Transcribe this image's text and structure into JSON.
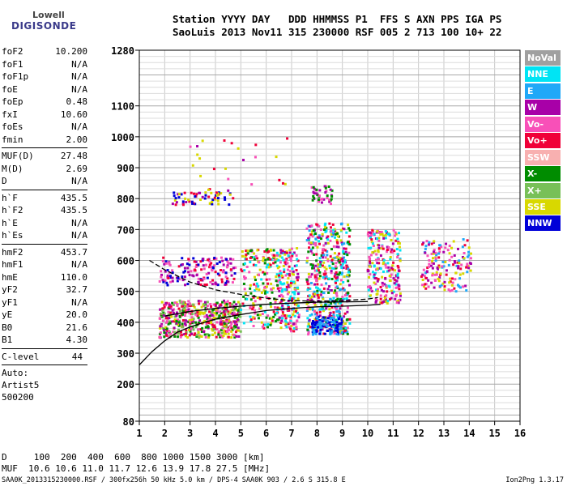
{
  "logo": {
    "line1": "Lowell",
    "line2": "DIGISONDE"
  },
  "header": {
    "labels": "Station YYYY DAY   DDD HHMMSS P1  FFS S AXN PPS IGA PS",
    "values": "SaoLuis 2013 Nov11 315 230000 RSF 005 2 713 100 10+ 22"
  },
  "params": {
    "group1": [
      {
        "name": "foF2",
        "value": "10.200"
      },
      {
        "name": "foF1",
        "value": "N/A"
      },
      {
        "name": "foF1p",
        "value": "N/A"
      },
      {
        "name": "foE",
        "value": "N/A"
      },
      {
        "name": "foEp",
        "value": "0.48"
      },
      {
        "name": "fxI",
        "value": "10.60"
      },
      {
        "name": "foEs",
        "value": "N/A"
      },
      {
        "name": "fmin",
        "value": "2.00"
      }
    ],
    "group2": [
      {
        "name": "MUF(D)",
        "value": "27.48"
      },
      {
        "name": "M(D)",
        "value": "2.69"
      },
      {
        "name": "D",
        "value": "N/A"
      }
    ],
    "group3": [
      {
        "name": "h`F",
        "value": "435.5"
      },
      {
        "name": "h`F2",
        "value": "435.5"
      },
      {
        "name": "h`E",
        "value": "N/A"
      },
      {
        "name": "h`Es",
        "value": "N/A"
      }
    ],
    "group4": [
      {
        "name": "hmF2",
        "value": "453.7"
      },
      {
        "name": "hmF1",
        "value": "N/A"
      },
      {
        "name": "hmE",
        "value": "110.0"
      },
      {
        "name": "yF2",
        "value": "32.7"
      },
      {
        "name": "yF1",
        "value": "N/A"
      },
      {
        "name": "yE",
        "value": "20.0"
      },
      {
        "name": "B0",
        "value": "21.6"
      },
      {
        "name": "B1",
        "value": "4.30"
      }
    ],
    "clevel": {
      "name": "C-level",
      "value": "44"
    },
    "auto": [
      "Auto:",
      "Artist5",
      "500200"
    ]
  },
  "legend": [
    {
      "label": "NoVal",
      "color": "#a0a0a0"
    },
    {
      "label": "NNE",
      "color": "#00e4f4"
    },
    {
      "label": "E",
      "color": "#20a8f8"
    },
    {
      "label": "W",
      "color": "#a800a8"
    },
    {
      "label": "Vo-",
      "color": "#f850b8"
    },
    {
      "label": "Vo+",
      "color": "#f00038"
    },
    {
      "label": "SSW",
      "color": "#f8b0b0"
    },
    {
      "label": "X-",
      "color": "#008c00"
    },
    {
      "label": "X+",
      "color": "#78c058"
    },
    {
      "label": "SSE",
      "color": "#d8d800"
    },
    {
      "label": "NNW",
      "color": "#0000d8"
    }
  ],
  "chart_data": {
    "type": "scatter",
    "xlabel": "",
    "ylabel": "",
    "xlim": [
      1,
      16
    ],
    "ylim": [
      80,
      1280
    ],
    "x_ticks": [
      "1",
      "2",
      "3",
      "4",
      "5",
      "6",
      "7",
      "8",
      "9",
      "10",
      "11",
      "12",
      "13",
      "14",
      "15",
      "16"
    ],
    "y_ticks": [
      {
        "value": 80,
        "label": "80"
      },
      {
        "value": 200,
        "label": "200"
      },
      {
        "value": 300,
        "label": "300"
      },
      {
        "value": 400,
        "label": "400"
      },
      {
        "value": 500,
        "label": "500"
      },
      {
        "value": 600,
        "label": "600"
      },
      {
        "value": 700,
        "label": "700"
      },
      {
        "value": 800,
        "label": "800"
      },
      {
        "value": 900,
        "label": "900"
      },
      {
        "value": 1000,
        "label": "1000"
      },
      {
        "value": 1100,
        "label": "1100"
      },
      {
        "value": 1280,
        "label": "1280"
      }
    ],
    "grid": true,
    "clusters": [
      {
        "x": [
          1.8,
          5.0
        ],
        "y": [
          350,
          470
        ],
        "density": 520,
        "colors": [
          "#f00038",
          "#f850b8",
          "#a800a8",
          "#d8d800",
          "#78c058",
          "#008c00"
        ]
      },
      {
        "x": [
          1.8,
          4.8
        ],
        "y": [
          520,
          610
        ],
        "density": 160,
        "colors": [
          "#a800a8",
          "#f850b8",
          "#f00038",
          "#0000d8"
        ]
      },
      {
        "x": [
          2.3,
          4.7
        ],
        "y": [
          780,
          820
        ],
        "density": 60,
        "colors": [
          "#f00038",
          "#a800a8",
          "#d8d800",
          "#0000d8"
        ]
      },
      {
        "x": [
          5.0,
          6.5
        ],
        "y": [
          380,
          640
        ],
        "density": 200,
        "colors": [
          "#d8d800",
          "#f850b8",
          "#008c00",
          "#00e4f4",
          "#f00038"
        ]
      },
      {
        "x": [
          6.5,
          7.3
        ],
        "y": [
          370,
          640
        ],
        "density": 200,
        "colors": [
          "#d8d800",
          "#f850b8",
          "#a800a8",
          "#f00038",
          "#00e4f4"
        ]
      },
      {
        "x": [
          7.6,
          9.3
        ],
        "y": [
          360,
          720
        ],
        "density": 520,
        "colors": [
          "#00e4f4",
          "#20a8f8",
          "#d8d800",
          "#f850b8",
          "#a800a8",
          "#008c00",
          "#f00038"
        ]
      },
      {
        "x": [
          7.8,
          9.0
        ],
        "y": [
          360,
          420
        ],
        "density": 120,
        "colors": [
          "#0000d8",
          "#20a8f8"
        ]
      },
      {
        "x": [
          7.8,
          8.6
        ],
        "y": [
          780,
          840
        ],
        "density": 40,
        "colors": [
          "#a800a8",
          "#f850b8",
          "#008c00"
        ]
      },
      {
        "x": [
          10.0,
          11.3
        ],
        "y": [
          460,
          700
        ],
        "density": 240,
        "colors": [
          "#f850b8",
          "#a800a8",
          "#f00038",
          "#00e4f4",
          "#d8d800"
        ]
      },
      {
        "x": [
          12.1,
          14.1
        ],
        "y": [
          500,
          670
        ],
        "density": 160,
        "colors": [
          "#f850b8",
          "#a800a8",
          "#f00038",
          "#20a8f8",
          "#d8d800"
        ]
      },
      {
        "x": [
          3.0,
          7.0
        ],
        "y": [
          820,
          1000
        ],
        "density": 25,
        "colors": [
          "#a800a8",
          "#f850b8",
          "#d8d800",
          "#f00038"
        ]
      }
    ],
    "trace_curve": {
      "x": [
        1.0,
        1.5,
        2.0,
        2.5,
        3.0,
        3.5,
        4.0,
        5.0,
        6.0,
        7.0,
        8.0,
        9.0,
        10.0,
        10.5
      ],
      "y": [
        262,
        305,
        340,
        368,
        385,
        398,
        410,
        425,
        438,
        445,
        450,
        452,
        455,
        458
      ]
    },
    "profile_dashed": {
      "x": [
        1.4,
        2.0,
        3.0,
        4.0,
        5.0,
        6.0,
        7.0,
        8.0,
        9.0,
        10.0,
        10.4
      ],
      "y": [
        600,
        570,
        530,
        505,
        490,
        478,
        470,
        468,
        470,
        475,
        480
      ]
    },
    "profile_solid": {
      "x": [
        2.0,
        3.0,
        4.0,
        5.0,
        6.0,
        7.0,
        8.0,
        9.0,
        10.0
      ],
      "y": [
        420,
        435,
        445,
        452,
        458,
        462,
        465,
        466,
        467
      ]
    }
  },
  "bottom": {
    "d_row": "D     100  200  400  600  800 1000 1500 3000 [km]",
    "muf_row": "MUF  10.6 10.6 11.0 11.7 12.6 13.9 17.8 27.5 [MHz]"
  },
  "footer": {
    "left": "SAA0K_2013315230000.RSF / 300fx256h 50 kHz 5.0 km / DPS-4 SAA0K 903 / 2.6 S 315.8 E",
    "right": "Ion2Png 1.3.17"
  }
}
